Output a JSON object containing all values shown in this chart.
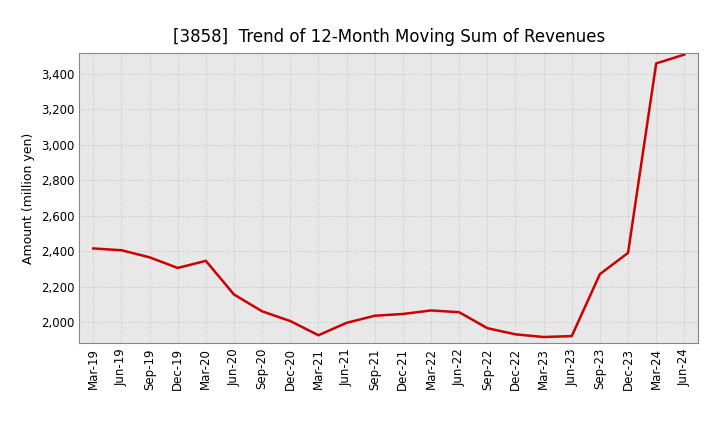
{
  "title": "[3858]  Trend of 12-Month Moving Sum of Revenues",
  "ylabel": "Amount (million yen)",
  "line_color": "#CC0000",
  "line_width": 1.8,
  "background_color": "#FFFFFF",
  "plot_bg_color": "#E8E8E8",
  "grid_color": "#BBBBBB",
  "ylim": [
    1880,
    3520
  ],
  "yticks": [
    2000,
    2200,
    2400,
    2600,
    2800,
    3000,
    3200,
    3400
  ],
  "dates": [
    "Mar-19",
    "Jun-19",
    "Sep-19",
    "Dec-19",
    "Mar-20",
    "Jun-20",
    "Sep-20",
    "Dec-20",
    "Mar-21",
    "Jun-21",
    "Sep-21",
    "Dec-21",
    "Mar-22",
    "Jun-22",
    "Sep-22",
    "Dec-22",
    "Mar-23",
    "Jun-23",
    "Sep-23",
    "Dec-23",
    "Mar-24",
    "Jun-24"
  ],
  "values": [
    2415,
    2405,
    2365,
    2305,
    2345,
    2155,
    2060,
    2005,
    1925,
    1995,
    2035,
    2045,
    2065,
    2055,
    1965,
    1930,
    1915,
    1920,
    2270,
    2390,
    3460,
    3510
  ],
  "title_fontsize": 12,
  "ylabel_fontsize": 9,
  "tick_fontsize": 8.5
}
